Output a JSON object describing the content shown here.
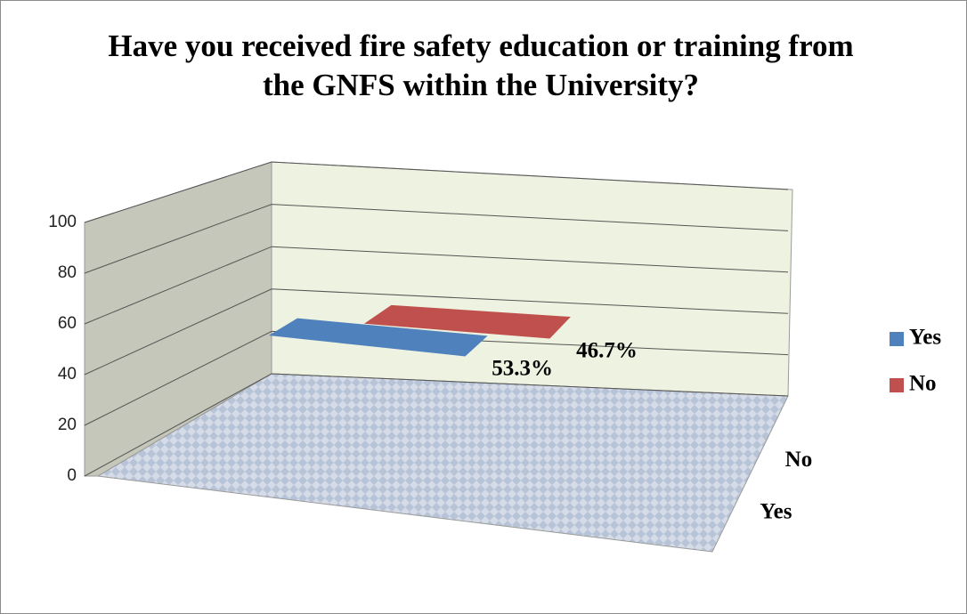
{
  "chart_data": {
    "type": "line3d",
    "title": "Have you received fire safety education or training from the GNFS within the University?",
    "categories": [
      null
    ],
    "series": [
      {
        "name": "Yes",
        "color": "#4f81bd",
        "values": [
          53.3
        ],
        "value_labels": [
          "53.3%"
        ]
      },
      {
        "name": "No",
        "color": "#c0504d",
        "values": [
          46.7
        ],
        "value_labels": [
          "46.7%"
        ]
      }
    ],
    "ylim": [
      0,
      100
    ],
    "yticks": [
      0,
      20,
      40,
      60,
      80,
      100
    ],
    "grid": true,
    "legend": "right"
  }
}
